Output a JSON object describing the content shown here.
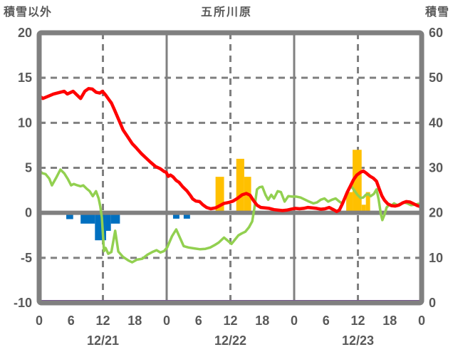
{
  "title": "五所川原",
  "header": {
    "left_axis_title": "積雪以外",
    "right_axis_title": "積雪"
  },
  "left_axis": {
    "label": "積雪以外",
    "min": -10,
    "max": 20,
    "ticks": [
      20,
      15,
      10,
      5,
      0,
      -5,
      -10
    ]
  },
  "right_axis": {
    "label": "積雪",
    "min": 0,
    "max": 60,
    "ticks": [
      60,
      50,
      40,
      30,
      20,
      10,
      0
    ]
  },
  "x_axis": {
    "hours_total": 72,
    "hour_label_step": 6,
    "hour_labels": [
      "0",
      "6",
      "12",
      "18",
      "0",
      "6",
      "12",
      "18",
      "0",
      "6",
      "12",
      "18",
      "0"
    ],
    "date_labels": [
      "12/21",
      "12/22",
      "12/23"
    ],
    "dashed_gridline_hours": [
      12,
      36,
      60
    ],
    "solid_gridline_hours": [
      24,
      48
    ]
  },
  "colors": {
    "frame": "#808080",
    "grid": "#808080",
    "text": "#595959",
    "red_line": "#ff0000",
    "green_line": "#92d050",
    "orange_bars": "#ffc000",
    "blue_bars": "#0070c0",
    "purple_line": "#7030a0",
    "background": "#ffffff"
  },
  "chart_data": {
    "type": "combo",
    "title": "五所川原",
    "x_unit": "hour (0-72, three days 12/21-12/23)",
    "left_axis_range": [
      -10,
      20
    ],
    "right_axis_range": [
      0,
      60
    ],
    "grid": "dashed horizontal at 15/10/5/-5, thick solid zero line, dashed vertical at each 12h, solid vertical at day boundaries",
    "series": [
      {
        "name": "red-line",
        "type": "line",
        "axis": "left",
        "color": "#ff0000",
        "points": [
          [
            0,
            13.0
          ],
          [
            0.7,
            12.7
          ],
          [
            1.5,
            12.9
          ],
          [
            2.7,
            13.2
          ],
          [
            4,
            13.4
          ],
          [
            4.7,
            13.5
          ],
          [
            5.3,
            13.2
          ],
          [
            6.4,
            13.5
          ],
          [
            7.1,
            13.1
          ],
          [
            7.8,
            12.7
          ],
          [
            8.6,
            13.5
          ],
          [
            9.3,
            13.8
          ],
          [
            10,
            13.75
          ],
          [
            10.7,
            13.4
          ],
          [
            11.4,
            13.3
          ],
          [
            11.9,
            13.5
          ],
          [
            12.5,
            13.1
          ],
          [
            13.1,
            12.6
          ],
          [
            13.6,
            12.2
          ],
          [
            14.2,
            11.4
          ],
          [
            15,
            10.3
          ],
          [
            15.8,
            9.2
          ],
          [
            16.6,
            8.5
          ],
          [
            17.5,
            7.7
          ],
          [
            18.3,
            7.2
          ],
          [
            19.2,
            6.6
          ],
          [
            20.1,
            6.1
          ],
          [
            21,
            5.6
          ],
          [
            21.9,
            5.15
          ],
          [
            22.8,
            4.9
          ],
          [
            23.5,
            4.6
          ],
          [
            23.9,
            4.5
          ],
          [
            24.3,
            4.05
          ],
          [
            24.7,
            4.2
          ],
          [
            25.2,
            4.0
          ],
          [
            25.8,
            3.6
          ],
          [
            26.3,
            3.4
          ],
          [
            27,
            2.9
          ],
          [
            27.8,
            2.45
          ],
          [
            28.5,
            1.9
          ],
          [
            28.9,
            1.55
          ],
          [
            29.5,
            1.3
          ],
          [
            30.2,
            1.25
          ],
          [
            30.8,
            0.9
          ],
          [
            31.5,
            0.6
          ],
          [
            32.3,
            0.45
          ],
          [
            33.2,
            0.55
          ],
          [
            34,
            0.8
          ],
          [
            34.8,
            1.05
          ],
          [
            35.7,
            1.15
          ],
          [
            36.5,
            1.3
          ],
          [
            37.3,
            1.6
          ],
          [
            38.2,
            2.0
          ],
          [
            39,
            2.15
          ],
          [
            39.7,
            1.95
          ],
          [
            40.3,
            1.4
          ],
          [
            41,
            0.85
          ],
          [
            41.7,
            0.6
          ],
          [
            42.5,
            0.55
          ],
          [
            43.3,
            0.5
          ],
          [
            44.2,
            0.35
          ],
          [
            45,
            0.3
          ],
          [
            45.8,
            0.25
          ],
          [
            46.6,
            0.3
          ],
          [
            47.4,
            0.4
          ],
          [
            48.2,
            0.5
          ],
          [
            49,
            0.45
          ],
          [
            49.8,
            0.5
          ],
          [
            50.6,
            0.6
          ],
          [
            51.4,
            0.55
          ],
          [
            52.2,
            0.5
          ],
          [
            53,
            0.4
          ],
          [
            53.8,
            0.45
          ],
          [
            54.6,
            0.6
          ],
          [
            55.4,
            0.35
          ],
          [
            56,
            0.15
          ],
          [
            56.5,
            0.3
          ],
          [
            57,
            0.9
          ],
          [
            57.5,
            1.6
          ],
          [
            58,
            2.3
          ],
          [
            58.6,
            3.0
          ],
          [
            59.2,
            3.7
          ],
          [
            59.8,
            4.2
          ],
          [
            60.5,
            4.5
          ],
          [
            61,
            4.65
          ],
          [
            61.6,
            4.4
          ],
          [
            62.2,
            4.1
          ],
          [
            62.9,
            3.85
          ],
          [
            63.5,
            3.5
          ],
          [
            64,
            2.7
          ],
          [
            64.5,
            1.9
          ],
          [
            65,
            1.4
          ],
          [
            65.6,
            1.0
          ],
          [
            66.3,
            0.8
          ],
          [
            67,
            0.75
          ],
          [
            67.7,
            0.85
          ],
          [
            68.4,
            1.1
          ],
          [
            69.1,
            1.25
          ],
          [
            69.8,
            1.2
          ],
          [
            70.5,
            1.0
          ],
          [
            71.2,
            0.8
          ],
          [
            72,
            0.65
          ]
        ]
      },
      {
        "name": "green-line",
        "type": "line",
        "axis": "left",
        "color": "#92d050",
        "points": [
          [
            0,
            4.7
          ],
          [
            0.6,
            4.4
          ],
          [
            1.2,
            4.3
          ],
          [
            1.9,
            3.8
          ],
          [
            2.4,
            3.05
          ],
          [
            3.2,
            3.9
          ],
          [
            4,
            4.8
          ],
          [
            4.7,
            4.4
          ],
          [
            5.4,
            3.75
          ],
          [
            6,
            3.05
          ],
          [
            6.5,
            3.2
          ],
          [
            7.2,
            3.05
          ],
          [
            7.8,
            2.95
          ],
          [
            8.3,
            3.05
          ],
          [
            9,
            2.65
          ],
          [
            9.5,
            2.4
          ],
          [
            10.1,
            1.85
          ],
          [
            10.7,
            2.4
          ],
          [
            11.2,
            1.6
          ],
          [
            11.5,
            0.7
          ],
          [
            11.8,
            -0.5
          ],
          [
            12.2,
            -4.25
          ],
          [
            12.5,
            -3.9
          ],
          [
            13,
            -4.55
          ],
          [
            13.6,
            -4.35
          ],
          [
            14.3,
            -2.0
          ],
          [
            14.9,
            -4.3
          ],
          [
            15.8,
            -4.9
          ],
          [
            16.8,
            -5.3
          ],
          [
            17.5,
            -5.5
          ],
          [
            18.4,
            -5.2
          ],
          [
            19.4,
            -5.1
          ],
          [
            20.4,
            -4.65
          ],
          [
            21.3,
            -4.35
          ],
          [
            22.1,
            -4.15
          ],
          [
            22.8,
            -4.4
          ],
          [
            23.5,
            -4.25
          ],
          [
            24.1,
            -3.85
          ],
          [
            25,
            -2.6
          ],
          [
            25.8,
            -1.85
          ],
          [
            26.6,
            -2.9
          ],
          [
            27.2,
            -3.7
          ],
          [
            28.1,
            -3.85
          ],
          [
            29.2,
            -3.95
          ],
          [
            30.3,
            -4.05
          ],
          [
            31.3,
            -4.0
          ],
          [
            32.2,
            -3.85
          ],
          [
            33,
            -3.6
          ],
          [
            33.8,
            -3.3
          ],
          [
            34.8,
            -2.75
          ],
          [
            35.5,
            -3.1
          ],
          [
            36.2,
            -3.45
          ],
          [
            36.9,
            -2.95
          ],
          [
            37.5,
            -2.5
          ],
          [
            38.1,
            -2.3
          ],
          [
            38.8,
            -2.1
          ],
          [
            39.5,
            -1.6
          ],
          [
            40.1,
            -0.95
          ],
          [
            40.5,
            0.5
          ],
          [
            41,
            2.6
          ],
          [
            41.5,
            2.85
          ],
          [
            42,
            2.9
          ],
          [
            42.6,
            2.0
          ],
          [
            43.1,
            1.45
          ],
          [
            43.7,
            2.0
          ],
          [
            44.2,
            1.6
          ],
          [
            44.9,
            2.4
          ],
          [
            45.5,
            2.3
          ],
          [
            46.2,
            1.25
          ],
          [
            46.9,
            1.85
          ],
          [
            47.6,
            1.8
          ],
          [
            48.4,
            1.8
          ],
          [
            49.2,
            1.7
          ],
          [
            49.9,
            1.5
          ],
          [
            50.8,
            1.25
          ],
          [
            51.6,
            1.05
          ],
          [
            52.3,
            1.15
          ],
          [
            53,
            1.45
          ],
          [
            53.7,
            1.6
          ],
          [
            54.4,
            1.25
          ],
          [
            55.1,
            1.45
          ],
          [
            55.8,
            1.6
          ],
          [
            56.4,
            1.3
          ],
          [
            57,
            1.05
          ],
          [
            57.5,
            1.5
          ],
          [
            58,
            2.2
          ],
          [
            58.4,
            2.75
          ],
          [
            58.8,
            2.9
          ],
          [
            59.3,
            2.5
          ],
          [
            59.9,
            2.0
          ],
          [
            60.5,
            1.65
          ],
          [
            61,
            1.7
          ],
          [
            61.5,
            2.0
          ],
          [
            61.9,
            2.1
          ],
          [
            62.4,
            1.85
          ],
          [
            63,
            2.1
          ],
          [
            63.5,
            2.6
          ],
          [
            63.9,
            1.5
          ],
          [
            64.3,
            -0.1
          ],
          [
            64.6,
            -0.8
          ],
          [
            65,
            -0.2
          ],
          [
            65.4,
            0.6
          ],
          [
            65.9,
            0.9
          ],
          [
            66.3,
            0.8
          ],
          [
            66.8,
            1.05
          ],
          [
            67.4,
            0.85
          ],
          [
            68,
            1.0
          ],
          [
            68.7,
            1.15
          ],
          [
            69.3,
            1.05
          ],
          [
            70,
            0.85
          ],
          [
            70.7,
            0.9
          ],
          [
            71.4,
            1.0
          ],
          [
            72,
            0.95
          ]
        ]
      },
      {
        "name": "orange-bars",
        "type": "bar",
        "axis": "left",
        "color": "#ffc000",
        "bars": [
          [
            33.2,
            34.8,
            4
          ],
          [
            37.1,
            38.6,
            6
          ],
          [
            38.6,
            39.9,
            4
          ],
          [
            57.8,
            59.0,
            2.3
          ],
          [
            59.0,
            60.7,
            7
          ],
          [
            60.7,
            61.5,
            0.9
          ],
          [
            61.5,
            62.3,
            2.3
          ]
        ]
      },
      {
        "name": "blue-bars",
        "type": "bar",
        "axis": "left",
        "color": "#0070c0",
        "bars": [
          [
            5.1,
            6.4,
            -0.7
          ],
          [
            7.8,
            10.5,
            -1.2
          ],
          [
            10.5,
            12.6,
            -3.05
          ],
          [
            12.6,
            13.5,
            -2.0
          ],
          [
            13.5,
            15.2,
            -1.2
          ],
          [
            25.2,
            26.4,
            -0.65
          ],
          [
            27.2,
            28.4,
            -0.65
          ]
        ]
      },
      {
        "name": "purple-line",
        "type": "line",
        "axis": "right",
        "color": "#7030a0",
        "constant_value": 0,
        "note": "flat line along bottom of plot (right-axis value 0)"
      }
    ]
  }
}
